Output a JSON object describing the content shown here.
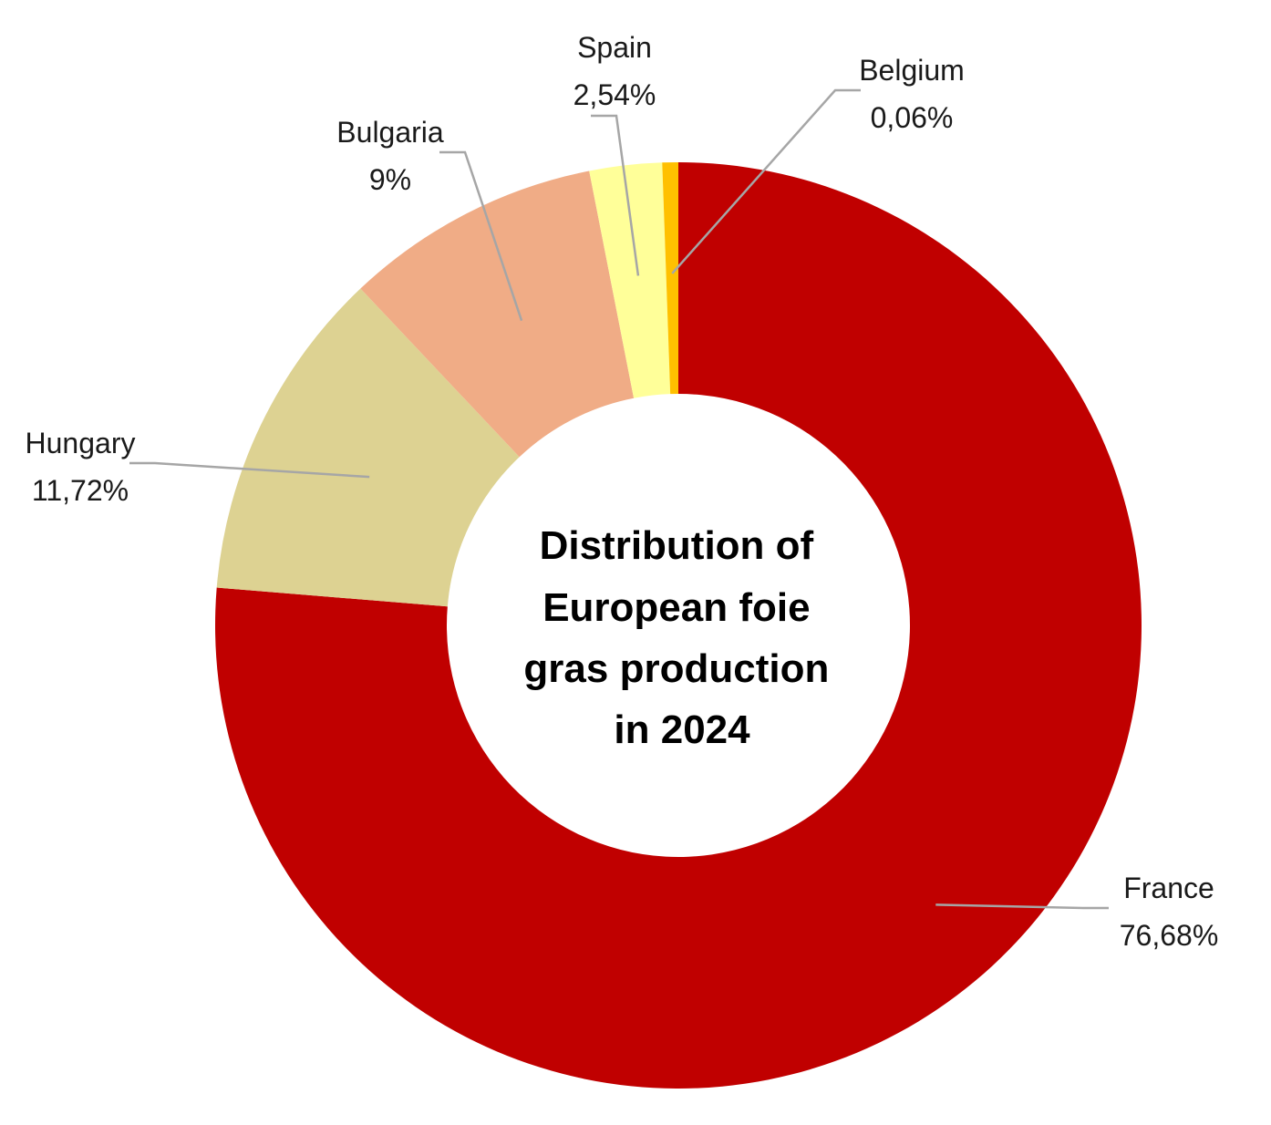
{
  "chart_data": {
    "type": "pie",
    "variant": "donut",
    "title": "Distribution of European foie gras production in 2024",
    "title_lines": [
      "Distribution of",
      "European foie",
      "gras production",
      "in 2024"
    ],
    "direction": "clockwise from top",
    "slices": [
      {
        "name": "France",
        "value": 76.68,
        "label": "76,68%",
        "color": "#c00000"
      },
      {
        "name": "Hungary",
        "value": 11.72,
        "label": "11,72%",
        "color": "#ddd292"
      },
      {
        "name": "Bulgaria",
        "value": 9,
        "label": "9%",
        "color": "#f0ac86"
      },
      {
        "name": "Spain",
        "value": 2.54,
        "label": "2,54%",
        "color": "#ffff99"
      },
      {
        "name": "Belgium",
        "value": 0.06,
        "label": "0,06%",
        "color": "#ffc000"
      }
    ],
    "data_labels": "category name and percentage, outside with leader lines",
    "legend": "none"
  }
}
